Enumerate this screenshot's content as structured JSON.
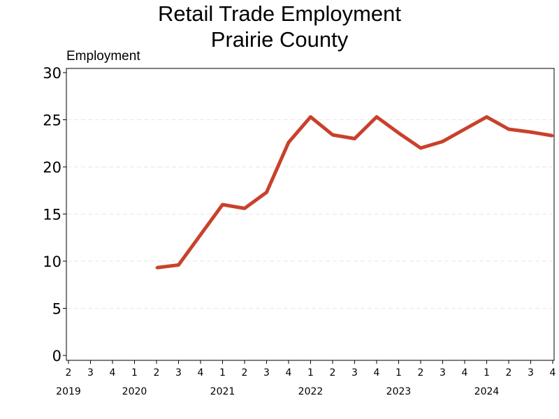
{
  "chart_data": {
    "type": "line",
    "title_lines": [
      "Retail Trade Employment",
      "Prairie County"
    ],
    "ylabel": "Employment",
    "xlabel": "",
    "ylim": [
      0,
      30
    ],
    "yticks": [
      0,
      5,
      10,
      15,
      20,
      25,
      30
    ],
    "grid": "horizontal-dashed",
    "line_color": "#c8412c",
    "x_quarter_labels": [
      "2",
      "3",
      "4",
      "1",
      "2",
      "3",
      "4",
      "1",
      "2",
      "3",
      "4",
      "1",
      "2",
      "3",
      "4",
      "1",
      "2",
      "3",
      "4",
      "1",
      "2",
      "3",
      "4"
    ],
    "year_labels": [
      {
        "label": "2019",
        "quarter_index": 0
      },
      {
        "label": "2020",
        "quarter_index": 3
      },
      {
        "label": "2021",
        "quarter_index": 7
      },
      {
        "label": "2022",
        "quarter_index": 11
      },
      {
        "label": "2023",
        "quarter_index": 15
      },
      {
        "label": "2024",
        "quarter_index": 19
      }
    ],
    "series": [
      {
        "points": [
          {
            "q": 4,
            "y": 9.3
          },
          {
            "q": 5,
            "y": 9.6
          },
          {
            "q": 6,
            "y": 12.8
          },
          {
            "q": 7,
            "y": 16.0
          },
          {
            "q": 8,
            "y": 15.6
          },
          {
            "q": 9,
            "y": 17.3
          },
          {
            "q": 10,
            "y": 22.6
          },
          {
            "q": 11,
            "y": 25.3
          },
          {
            "q": 12,
            "y": 23.4
          },
          {
            "q": 13,
            "y": 23.0
          },
          {
            "q": 14,
            "y": 25.3
          },
          {
            "q": 15,
            "y": 23.6
          },
          {
            "q": 16,
            "y": 22.0
          },
          {
            "q": 17,
            "y": 22.7
          },
          {
            "q": 18,
            "y": 24.0
          },
          {
            "q": 19,
            "y": 25.3
          },
          {
            "q": 20,
            "y": 24.0
          },
          {
            "q": 21,
            "y": 23.7
          },
          {
            "q": 22,
            "y": 23.3
          }
        ]
      }
    ]
  }
}
